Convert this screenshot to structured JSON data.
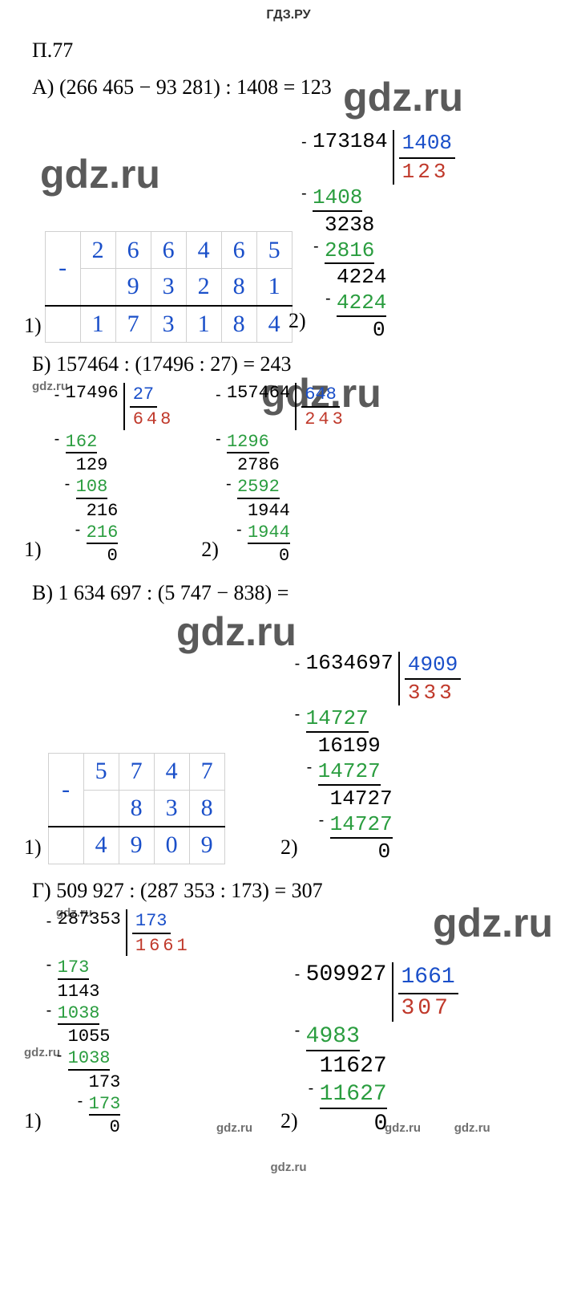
{
  "header": "ГДЗ.РУ",
  "problem_number": "П.77",
  "watermark_text": "gdz.ru",
  "colors": {
    "blue": "#1a4fc9",
    "red": "#c0392b",
    "green": "#2a9d3f",
    "black": "#000000",
    "grey_border": "#d0d0d0",
    "wm_grey": "#5a5a5a"
  },
  "partA": {
    "label": "А)",
    "equation": "(266 465 − 93 281) : 1408 = 123",
    "sub_table": {
      "sign": "-",
      "row1": [
        "2",
        "6",
        "6",
        "4",
        "6",
        "5"
      ],
      "row2": [
        "",
        "9",
        "3",
        "2",
        "8",
        "1"
      ],
      "result": [
        "1",
        "7",
        "3",
        "1",
        "8",
        "4"
      ]
    },
    "division": {
      "dividend": "173184",
      "divisor": "1408",
      "quotient": "123",
      "steps": [
        {
          "v": "1408",
          "indent": 0,
          "cls": "green",
          "minus": true,
          "under": true
        },
        {
          "v": "3238",
          "indent": 1,
          "cls": "black"
        },
        {
          "v": "2816",
          "indent": 1,
          "cls": "green",
          "minus": true,
          "under": true
        },
        {
          "v": "4224",
          "indent": 2,
          "cls": "black"
        },
        {
          "v": "4224",
          "indent": 2,
          "cls": "green",
          "minus": true,
          "under": true
        },
        {
          "v": "0",
          "indent": 5,
          "cls": "black"
        }
      ]
    },
    "step1_label": "1)",
    "step2_label": "2)"
  },
  "partB": {
    "label": "Б)",
    "equation": "157464 : (17496 : 27) = 243",
    "division1": {
      "dividend": "17496",
      "divisor": "27",
      "quotient": "648",
      "steps": [
        {
          "v": "162",
          "indent": 0,
          "cls": "green",
          "minus": true,
          "under": true
        },
        {
          "v": "129",
          "indent": 1,
          "cls": "black"
        },
        {
          "v": "108",
          "indent": 1,
          "cls": "green",
          "minus": true,
          "under": true
        },
        {
          "v": "216",
          "indent": 2,
          "cls": "black"
        },
        {
          "v": "216",
          "indent": 2,
          "cls": "green",
          "minus": true,
          "under": true
        },
        {
          "v": "0",
          "indent": 4,
          "cls": "black"
        }
      ]
    },
    "division2": {
      "dividend": "157464",
      "divisor": "648",
      "quotient": "243",
      "steps": [
        {
          "v": "1296",
          "indent": 0,
          "cls": "green",
          "minus": true,
          "under": true
        },
        {
          "v": "2786",
          "indent": 1,
          "cls": "black"
        },
        {
          "v": "2592",
          "indent": 1,
          "cls": "green",
          "minus": true,
          "under": true
        },
        {
          "v": "1944",
          "indent": 2,
          "cls": "black"
        },
        {
          "v": "1944",
          "indent": 2,
          "cls": "green",
          "minus": true,
          "under": true
        },
        {
          "v": "0",
          "indent": 5,
          "cls": "black"
        }
      ]
    },
    "step1_label": "1)",
    "step2_label": "2)"
  },
  "partC": {
    "label": "В)",
    "equation": "1 634 697 : (5 747 − 838) =",
    "sub_table": {
      "sign": "-",
      "row1": [
        "5",
        "7",
        "4",
        "7"
      ],
      "row2": [
        "",
        "8",
        "3",
        "8"
      ],
      "result": [
        "4",
        "9",
        "0",
        "9"
      ]
    },
    "division": {
      "dividend": "1634697",
      "divisor": "4909",
      "quotient": "333",
      "steps": [
        {
          "v": "14727",
          "indent": 0,
          "cls": "green",
          "minus": true,
          "under": true
        },
        {
          "v": "16199",
          "indent": 1,
          "cls": "black"
        },
        {
          "v": "14727",
          "indent": 1,
          "cls": "green",
          "minus": true,
          "under": true
        },
        {
          "v": "14727",
          "indent": 2,
          "cls": "black"
        },
        {
          "v": "14727",
          "indent": 2,
          "cls": "green",
          "minus": true,
          "under": true
        },
        {
          "v": "0",
          "indent": 6,
          "cls": "black"
        }
      ]
    },
    "step1_label": "1)",
    "step2_label": "2)"
  },
  "partD": {
    "label": "Г)",
    "equation": "509 927 : (287 353 : 173) = 307",
    "division1": {
      "dividend": "287353",
      "divisor": "173",
      "quotient": "1661",
      "steps": [
        {
          "v": "173",
          "indent": 0,
          "cls": "green",
          "minus": true,
          "under": true
        },
        {
          "v": "1143",
          "indent": 0,
          "cls": "black"
        },
        {
          "v": "1038",
          "indent": 0,
          "cls": "green",
          "minus": true,
          "under": true
        },
        {
          "v": "1055",
          "indent": 1,
          "cls": "black"
        },
        {
          "v": "1038",
          "indent": 1,
          "cls": "green",
          "minus": true,
          "under": true
        },
        {
          "v": "173",
          "indent": 3,
          "cls": "black"
        },
        {
          "v": "173",
          "indent": 3,
          "cls": "green",
          "minus": true,
          "under": true
        },
        {
          "v": "0",
          "indent": 5,
          "cls": "black"
        }
      ]
    },
    "division2": {
      "dividend": "509927",
      "divisor": "1661",
      "quotient": "307",
      "steps": [
        {
          "v": "4983",
          "indent": 0,
          "cls": "green",
          "minus": true,
          "under": true
        },
        {
          "v": "11627",
          "indent": 1,
          "cls": "black"
        },
        {
          "v": "11627",
          "indent": 1,
          "cls": "green",
          "minus": true,
          "under": true
        },
        {
          "v": "0",
          "indent": 5,
          "cls": "black"
        }
      ]
    },
    "step1_label": "1)",
    "step2_label": "2)"
  }
}
